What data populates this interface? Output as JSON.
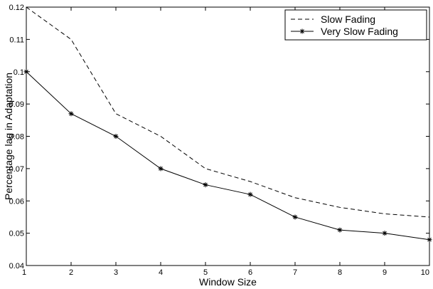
{
  "chart_data": {
    "type": "line",
    "xlabel": "Window Size",
    "ylabel": "Percentage lag in Adaptation",
    "xlim": [
      1,
      10
    ],
    "ylim": [
      0.04,
      0.12
    ],
    "xticks": [
      1,
      2,
      3,
      4,
      5,
      6,
      7,
      8,
      9,
      10
    ],
    "yticks": [
      0.04,
      0.05,
      0.06,
      0.07,
      0.08,
      0.09,
      0.1,
      0.11,
      0.12
    ],
    "xtick_labels": [
      "1",
      "2",
      "3",
      "4",
      "5",
      "6",
      "7",
      "8",
      "9",
      "10"
    ],
    "ytick_labels": [
      "0.04",
      "0.05",
      "0.06",
      "0.07",
      "0.08",
      "0.09",
      "0.1",
      "0.11",
      "0.12"
    ],
    "grid": false,
    "legend_position": "top-right",
    "x": [
      1,
      2,
      3,
      4,
      5,
      6,
      7,
      8,
      9,
      10
    ],
    "series": [
      {
        "name": "Slow Fading",
        "style": "dashed",
        "marker": "none",
        "color": "#000000",
        "values": [
          0.12,
          0.11,
          0.087,
          0.08,
          0.07,
          0.066,
          0.061,
          0.058,
          0.056,
          0.055
        ]
      },
      {
        "name": "Very Slow Fading",
        "style": "solid",
        "marker": "asterisk",
        "color": "#000000",
        "values": [
          0.1,
          0.087,
          0.08,
          0.07,
          0.065,
          0.062,
          0.055,
          0.051,
          0.05,
          0.048
        ]
      }
    ]
  }
}
